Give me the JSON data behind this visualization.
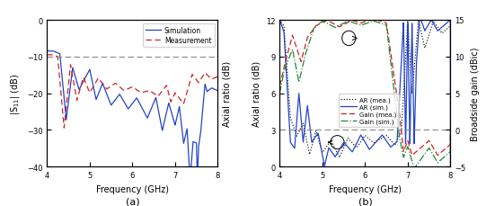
{
  "xlim": [
    4,
    8
  ],
  "panel_a": {
    "ylim": [
      -40,
      0
    ],
    "yticks": [
      0,
      -10,
      -20,
      -30,
      -40
    ],
    "ylabel": "|S$_{11}$| (dB)",
    "ylabel_right": "Axial ratio (dB)",
    "xlabel": "Frequency (GHz)",
    "hline_y": -10,
    "sim_color": "#2244cc",
    "meas_color": "#cc2222",
    "hline_color": "#888888"
  },
  "panel_b": {
    "ylim_left": [
      0,
      12
    ],
    "ylim_right": [
      -5,
      15
    ],
    "yticks_left": [
      0,
      3,
      6,
      9,
      12
    ],
    "yticks_right": [
      -5,
      0,
      5,
      10,
      15
    ],
    "ylabel_left": "Axial ratio (dB)",
    "ylabel_right": "Broadside gain (dBic)",
    "xlabel": "Frequency (GHz)",
    "hline_y_left": 3,
    "ar_meas_color": "#111111",
    "ar_sim_color": "#2244cc",
    "gain_meas_color": "#cc2222",
    "gain_sim_color": "#228833",
    "hline_color": "#888888"
  }
}
